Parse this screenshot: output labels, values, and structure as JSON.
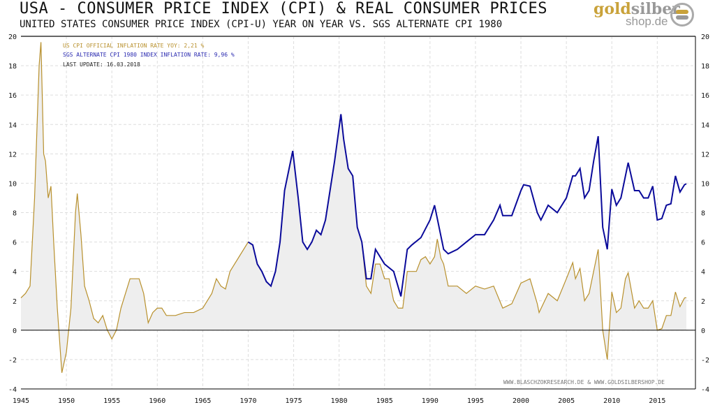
{
  "header": {
    "title": "USA - CONSUMER PRICE INDEX (CPI) & REAL CONSUMER PRICES",
    "subtitle": "UNITED STATES CONSUMER PRICE INDEX (CPI-U) YEAR ON YEAR VS. SGS ALTERNATE CPI 1980",
    "logo": "goldsilbershop.de"
  },
  "chart_data": {
    "type": "line",
    "xlim": [
      1945,
      2019.2
    ],
    "ylim": [
      -4,
      20
    ],
    "xticks": [
      1945,
      1950,
      1955,
      1960,
      1965,
      1970,
      1975,
      1980,
      1985,
      1990,
      1995,
      2000,
      2005,
      2010,
      2015
    ],
    "yticks": [
      -4,
      -2,
      0,
      2,
      4,
      6,
      8,
      10,
      12,
      14,
      16,
      18,
      20
    ],
    "grid": true,
    "legend": [
      "US CPI OFFICIAL INFLATION RATE YOY: 2,21 %",
      "SGS ALTERNATE CPI 1980 INDEX INFLATION RATE: 9,96 %",
      "LAST UPDATE: 16.03.2018"
    ],
    "legend_placement": "top-left",
    "footer": "WWW.BLASCHZOKRESEARCH.DE  &  WWW.GOLDSILBERSHOP.DE",
    "colors": {
      "cpi": "#b8902c",
      "sgs": "#0a0a9a",
      "fill": "#eeeeee"
    },
    "series": [
      {
        "name": "US CPI OFFICIAL INFLATION RATE YOY",
        "x": [
          1945,
          1945.5,
          1946,
          1946.5,
          1947,
          1947.2,
          1947.5,
          1947.7,
          1948,
          1948.3,
          1948.6,
          1949,
          1949.5,
          1950,
          1950.5,
          1951,
          1951.2,
          1951.6,
          1952,
          1952.5,
          1953,
          1953.5,
          1954,
          1954.5,
          1955,
          1955.5,
          1956,
          1956.5,
          1957,
          1957.5,
          1958,
          1958.5,
          1959,
          1959.5,
          1960,
          1960.5,
          1961,
          1962,
          1963,
          1964,
          1965,
          1966,
          1966.5,
          1967,
          1967.5,
          1968,
          1969,
          1970,
          1970.5,
          1971,
          1971.5,
          1972,
          1972.5,
          1973,
          1973.5,
          1974,
          1974.5,
          1974.9,
          1975.5,
          1976,
          1976.5,
          1977,
          1977.5,
          1978,
          1978.5,
          1979,
          1979.5,
          1980.2,
          1980.5,
          1981,
          1981.5,
          1982,
          1982.5,
          1983,
          1983.5,
          1984,
          1984.5,
          1985,
          1985.5,
          1986,
          1986.5,
          1987,
          1987.5,
          1988,
          1988.5,
          1989,
          1989.5,
          1990,
          1990.5,
          1990.8,
          1991.2,
          1991.5,
          1992,
          1993,
          1994,
          1995,
          1996,
          1997,
          1998,
          1999,
          2000,
          2001,
          2001.8,
          2002,
          2003,
          2004,
          2005,
          2005.7,
          2006,
          2006.5,
          2007,
          2007.5,
          2008,
          2008.5,
          2009,
          2009.5,
          2010,
          2010.5,
          2011,
          2011.5,
          2011.8,
          2012.5,
          2013,
          2013.5,
          2014,
          2014.5,
          2015,
          2015.5,
          2016,
          2016.5,
          2017,
          2017.5,
          2018,
          2018.2
        ],
        "values": [
          2.2,
          2.5,
          3,
          9,
          18,
          19.6,
          12,
          11.5,
          9,
          9.8,
          6,
          1.5,
          -2.9,
          -1.5,
          1.5,
          8,
          9.3,
          6.5,
          3,
          2,
          0.8,
          0.5,
          1,
          0,
          -0.6,
          0,
          1.5,
          2.5,
          3.5,
          3.5,
          3.5,
          2.5,
          0.5,
          1.2,
          1.5,
          1.5,
          1,
          1,
          1.2,
          1.2,
          1.5,
          2.5,
          3.5,
          3,
          2.8,
          4,
          5,
          6,
          5.8,
          4.5,
          4,
          3.3,
          3,
          4,
          6,
          9.5,
          11,
          12.2,
          9,
          6,
          5.5,
          6,
          6.8,
          6.5,
          7.5,
          9.5,
          11.5,
          14.7,
          13,
          11,
          10.5,
          7,
          6,
          3,
          2.5,
          4.5,
          4.5,
          3.5,
          3.5,
          2,
          1.5,
          1.5,
          4,
          4,
          4,
          4.8,
          5,
          4.5,
          5,
          6.2,
          4.9,
          4.5,
          3,
          3,
          2.5,
          3,
          2.8,
          3,
          1.5,
          1.8,
          3.2,
          3.5,
          1.8,
          1.2,
          2.5,
          2,
          3.5,
          4.6,
          3.5,
          4.2,
          2,
          2.5,
          4,
          5.5,
          0,
          -2,
          2.6,
          1.2,
          1.5,
          3.5,
          3.9,
          1.5,
          2,
          1.5,
          1.5,
          2,
          0,
          0.1,
          1,
          1,
          2.6,
          1.6,
          2.2,
          2.21
        ]
      },
      {
        "name": "SGS ALTERNATE CPI 1980 INDEX INFLATION RATE",
        "x": [
          1970,
          1970.5,
          1971,
          1971.5,
          1972,
          1972.5,
          1973,
          1973.5,
          1974,
          1974.5,
          1974.9,
          1975.5,
          1976,
          1976.5,
          1977,
          1977.5,
          1978,
          1978.5,
          1979,
          1979.5,
          1980.2,
          1980.5,
          1981,
          1981.5,
          1982,
          1982.5,
          1983,
          1983.5,
          1984,
          1985,
          1986,
          1986.8,
          1987.5,
          1988,
          1989,
          1990,
          1990.5,
          1991,
          1991.5,
          1992,
          1993,
          1994,
          1995,
          1996,
          1997,
          1997.7,
          1998,
          1999,
          2000,
          2000.3,
          2001,
          2001.8,
          2002.2,
          2003,
          2004,
          2005,
          2005.7,
          2006,
          2006.5,
          2007,
          2007.5,
          2008,
          2008.5,
          2009,
          2009.5,
          2010,
          2010.5,
          2011,
          2011.8,
          2012.5,
          2013,
          2013.5,
          2014,
          2014.5,
          2015,
          2015.5,
          2016,
          2016.5,
          2017,
          2017.5,
          2018,
          2018.2
        ],
        "values": [
          6,
          5.8,
          4.5,
          4,
          3.3,
          3,
          4,
          6,
          9.5,
          11,
          12.2,
          9,
          6,
          5.5,
          6,
          6.8,
          6.5,
          7.5,
          9.5,
          11.5,
          14.7,
          13,
          11,
          10.5,
          7,
          6,
          3.5,
          3.5,
          5.5,
          4.5,
          4,
          2.3,
          5.5,
          5.8,
          6.3,
          7.5,
          8.5,
          7,
          5.5,
          5.2,
          5.5,
          6,
          6.5,
          6.5,
          7.5,
          8.5,
          7.8,
          7.8,
          9.5,
          9.9,
          9.8,
          8,
          7.5,
          8.5,
          8,
          9,
          10.5,
          10.5,
          11,
          9,
          9.5,
          11.5,
          13.2,
          7,
          5.5,
          9.6,
          8.5,
          9,
          11.4,
          9.5,
          9.5,
          9,
          9,
          9.8,
          7.5,
          7.6,
          8.5,
          8.6,
          10.5,
          9.4,
          9.9,
          9.96
        ]
      }
    ]
  }
}
